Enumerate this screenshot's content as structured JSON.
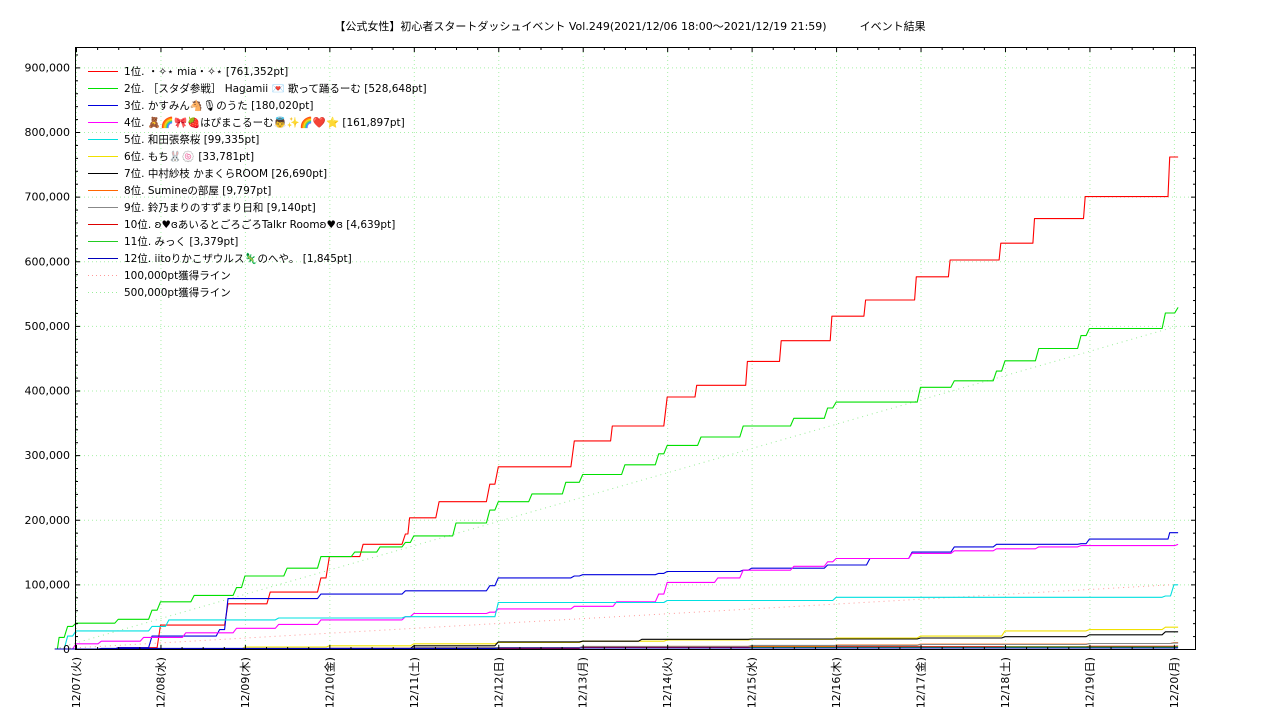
{
  "chart_data": {
    "type": "line",
    "title": "【公式女性】初心者スタートダッシュイベント Vol.249(2021/12/06 18:00～2021/12/19 21:59)　　　イベント結果",
    "xlabel": "",
    "ylabel": "",
    "x_range": [
      0,
      13.25
    ],
    "ylim": [
      0,
      930000
    ],
    "y_ticks": [
      0,
      100000,
      200000,
      300000,
      400000,
      500000,
      600000,
      700000,
      800000,
      900000
    ],
    "y_tick_labels": [
      "0",
      "100,000",
      "200,000",
      "300,000",
      "400,000",
      "500,000",
      "600,000",
      "700,000",
      "800,000",
      "900,000"
    ],
    "x_ticks": [
      0,
      1,
      2,
      3,
      4,
      5,
      6,
      7,
      8,
      9,
      10,
      11,
      12,
      13
    ],
    "x_tick_labels": [
      "12/07(火)",
      "12/08(水)",
      "12/09(木)",
      "12/10(金)",
      "12/11(土)",
      "12/12(日)",
      "12/13(月)",
      "12/14(火)",
      "12/15(水)",
      "12/16(木)",
      "12/17(金)",
      "12/18(土)",
      "12/19(日)",
      "12/20(月)"
    ],
    "grid": true,
    "legend_position": "top-left",
    "series": [
      {
        "name": "1位. ・✧⋆ mia・✧⋆ [761,352pt]",
        "color": "#ff0000",
        "style": "step",
        "points": [
          [
            -0.25,
            0
          ],
          [
            0.5,
            2000
          ],
          [
            1.0,
            37000
          ],
          [
            1.6,
            37000
          ],
          [
            1.8,
            70000
          ],
          [
            2.3,
            88000
          ],
          [
            2.9,
            110000
          ],
          [
            3.0,
            143000
          ],
          [
            3.4,
            162000
          ],
          [
            3.9,
            178000
          ],
          [
            3.95,
            203000
          ],
          [
            4.3,
            228000
          ],
          [
            4.9,
            255000
          ],
          [
            5.0,
            282000
          ],
          [
            5.8,
            282000
          ],
          [
            5.9,
            322000
          ],
          [
            6.3,
            322000
          ],
          [
            6.35,
            345000
          ],
          [
            6.9,
            345000
          ],
          [
            7.0,
            390000
          ],
          [
            7.3,
            390000
          ],
          [
            7.35,
            408000
          ],
          [
            7.9,
            408000
          ],
          [
            7.95,
            445000
          ],
          [
            8.3,
            445000
          ],
          [
            8.35,
            477000
          ],
          [
            8.9,
            477000
          ],
          [
            8.95,
            515000
          ],
          [
            9.3,
            515000
          ],
          [
            9.35,
            540000
          ],
          [
            9.9,
            540000
          ],
          [
            9.95,
            576000
          ],
          [
            10.3,
            576000
          ],
          [
            10.35,
            602000
          ],
          [
            10.9,
            602000
          ],
          [
            10.95,
            628000
          ],
          [
            11.3,
            628000
          ],
          [
            11.35,
            666000
          ],
          [
            11.9,
            666000
          ],
          [
            11.95,
            700000
          ],
          [
            12.9,
            700000
          ],
          [
            12.95,
            761352
          ],
          [
            13.05,
            761352
          ]
        ]
      },
      {
        "name": "2位. ［スタダ参戦］ Hagamii 💌 歌って踊るーむ [528,648pt]",
        "color": "#00e000",
        "style": "step",
        "points": [
          [
            -0.25,
            0
          ],
          [
            -0.2,
            18000
          ],
          [
            -0.1,
            35000
          ],
          [
            0.0,
            40000
          ],
          [
            0.5,
            46000
          ],
          [
            0.9,
            60000
          ],
          [
            1.0,
            73000
          ],
          [
            1.4,
            83000
          ],
          [
            1.9,
            95000
          ],
          [
            2.0,
            113000
          ],
          [
            2.5,
            125000
          ],
          [
            2.9,
            143000
          ],
          [
            3.3,
            150000
          ],
          [
            3.6,
            158000
          ],
          [
            3.9,
            165000
          ],
          [
            4.0,
            175000
          ],
          [
            4.5,
            195000
          ],
          [
            4.9,
            215000
          ],
          [
            5.0,
            228000
          ],
          [
            5.4,
            240000
          ],
          [
            5.8,
            258000
          ],
          [
            6.0,
            270000
          ],
          [
            6.5,
            285000
          ],
          [
            6.9,
            302000
          ],
          [
            7.0,
            315000
          ],
          [
            7.4,
            328000
          ],
          [
            7.9,
            345000
          ],
          [
            8.5,
            357000
          ],
          [
            8.9,
            373000
          ],
          [
            9.0,
            382000
          ],
          [
            9.9,
            382000
          ],
          [
            10.0,
            405000
          ],
          [
            10.4,
            415000
          ],
          [
            10.9,
            430000
          ],
          [
            11.0,
            446000
          ],
          [
            11.4,
            465000
          ],
          [
            11.9,
            485000
          ],
          [
            12.0,
            496000
          ],
          [
            12.6,
            496000
          ],
          [
            12.9,
            520000
          ],
          [
            13.05,
            528648
          ]
        ]
      },
      {
        "name": "3位. かすみん🐴🎙のうた [180,020pt]",
        "color": "#0000dd",
        "style": "step",
        "points": [
          [
            -0.25,
            0
          ],
          [
            0.5,
            2000
          ],
          [
            0.9,
            20000
          ],
          [
            1.7,
            30000
          ],
          [
            1.8,
            78000
          ],
          [
            2.5,
            78000
          ],
          [
            2.9,
            85000
          ],
          [
            3.9,
            90000
          ],
          [
            4.9,
            98000
          ],
          [
            5.0,
            110000
          ],
          [
            5.9,
            113000
          ],
          [
            6.0,
            115000
          ],
          [
            6.9,
            117000
          ],
          [
            7.0,
            120000
          ],
          [
            7.9,
            122000
          ],
          [
            8.0,
            125000
          ],
          [
            8.9,
            130000
          ],
          [
            9.4,
            140000
          ],
          [
            9.9,
            150000
          ],
          [
            10.4,
            158000
          ],
          [
            10.9,
            162000
          ],
          [
            11.9,
            163000
          ],
          [
            12.0,
            170000
          ],
          [
            12.9,
            170000
          ],
          [
            12.95,
            180020
          ],
          [
            13.05,
            180020
          ]
        ]
      },
      {
        "name": "4位. 🧸🌈🎀🍓はぴまこるーむ👼✨🌈❤️⭐ [161,897pt]",
        "color": "#ff00ff",
        "style": "step",
        "points": [
          [
            -0.25,
            0
          ],
          [
            0.0,
            8000
          ],
          [
            0.3,
            12000
          ],
          [
            0.8,
            18000
          ],
          [
            1.3,
            25000
          ],
          [
            1.9,
            32000
          ],
          [
            2.4,
            38000
          ],
          [
            2.9,
            45000
          ],
          [
            3.9,
            50000
          ],
          [
            4.0,
            55000
          ],
          [
            4.9,
            57000
          ],
          [
            5.0,
            62000
          ],
          [
            5.9,
            66000
          ],
          [
            6.4,
            73000
          ],
          [
            6.9,
            85000
          ],
          [
            7.0,
            103000
          ],
          [
            7.6,
            110000
          ],
          [
            7.9,
            122000
          ],
          [
            8.5,
            128000
          ],
          [
            8.9,
            135000
          ],
          [
            9.0,
            140000
          ],
          [
            9.9,
            148000
          ],
          [
            10.4,
            152000
          ],
          [
            10.9,
            155000
          ],
          [
            11.4,
            158000
          ],
          [
            11.9,
            160000
          ],
          [
            13.05,
            161897
          ]
        ]
      },
      {
        "name": "5位. 和田張祭桜 [99,335pt]",
        "color": "#00e0e0",
        "style": "step",
        "points": [
          [
            -0.25,
            0
          ],
          [
            -0.1,
            20000
          ],
          [
            0.0,
            28000
          ],
          [
            0.9,
            35000
          ],
          [
            1.1,
            45000
          ],
          [
            2.4,
            48000
          ],
          [
            3.9,
            50000
          ],
          [
            5.0,
            72000
          ],
          [
            7.0,
            75000
          ],
          [
            9.0,
            80000
          ],
          [
            12.9,
            82000
          ],
          [
            13.0,
            99335
          ],
          [
            13.05,
            99335
          ]
        ]
      },
      {
        "name": "6位. もち🐰🍥 [33,781pt]",
        "color": "#f0e000",
        "style": "step",
        "points": [
          [
            -0.25,
            0
          ],
          [
            2.0,
            3000
          ],
          [
            3.0,
            5000
          ],
          [
            4.0,
            8000
          ],
          [
            5.0,
            10000
          ],
          [
            6.0,
            12000
          ],
          [
            7.0,
            14000
          ],
          [
            8.0,
            15000
          ],
          [
            9.0,
            17000
          ],
          [
            10.0,
            20000
          ],
          [
            11.0,
            28000
          ],
          [
            12.0,
            30000
          ],
          [
            12.9,
            33781
          ],
          [
            13.05,
            33781
          ]
        ]
      },
      {
        "name": "7位. 中村紗枝 かまくらROOM [26,690pt]",
        "color": "#000000",
        "style": "step",
        "points": [
          [
            -0.25,
            0
          ],
          [
            3.0,
            1000
          ],
          [
            4.0,
            5000
          ],
          [
            5.0,
            11000
          ],
          [
            6.0,
            12000
          ],
          [
            6.7,
            15000
          ],
          [
            8.0,
            15500
          ],
          [
            10.0,
            17000
          ],
          [
            11.0,
            19000
          ],
          [
            12.0,
            22000
          ],
          [
            12.9,
            26690
          ],
          [
            13.05,
            26690
          ]
        ]
      },
      {
        "name": "8位. Sumineの部屋 [9,797pt]",
        "color": "#ff6600",
        "style": "step",
        "points": [
          [
            -0.25,
            0
          ],
          [
            5.0,
            2000
          ],
          [
            7.0,
            4000
          ],
          [
            9.0,
            6000
          ],
          [
            10.0,
            7500
          ],
          [
            12.0,
            8500
          ],
          [
            13.0,
            9797
          ],
          [
            13.05,
            9797
          ]
        ]
      },
      {
        "name": "9位. 鈴乃まりのすずまり日和 [9,140pt]",
        "color": "#888888",
        "style": "step",
        "points": [
          [
            -0.25,
            0
          ],
          [
            4.0,
            2000
          ],
          [
            6.0,
            4000
          ],
          [
            8.0,
            5500
          ],
          [
            10.0,
            7000
          ],
          [
            12.0,
            8500
          ],
          [
            13.0,
            9140
          ],
          [
            13.05,
            9140
          ]
        ]
      },
      {
        "name": "10位. ʚ♥ɞあいるとごろごろTalkr Roomʚ♥ɞ [4,639pt]",
        "color": "#dd0000",
        "style": "step",
        "points": [
          [
            -0.25,
            0
          ],
          [
            3.0,
            1000
          ],
          [
            6.0,
            2500
          ],
          [
            9.0,
            3500
          ],
          [
            12.0,
            4200
          ],
          [
            13.05,
            4639
          ]
        ]
      },
      {
        "name": "11位. みっく [3,379pt]",
        "color": "#22cc22",
        "style": "step",
        "points": [
          [
            -0.25,
            0
          ],
          [
            2.0,
            500
          ],
          [
            5.0,
            1500
          ],
          [
            8.0,
            2500
          ],
          [
            11.0,
            3000
          ],
          [
            13.05,
            3379
          ]
        ]
      },
      {
        "name": "12位. iitoりかこザウルス🦎のへや。 [1,845pt]",
        "color": "#0000bb",
        "style": "step",
        "points": [
          [
            -0.25,
            0
          ],
          [
            0.3,
            1000
          ],
          [
            5.0,
            1500
          ],
          [
            13.05,
            1845
          ]
        ]
      },
      {
        "name": "100,000pt獲得ライン",
        "color": "#ff9999",
        "style": "dotted",
        "points": [
          [
            -0.25,
            0
          ],
          [
            13.05,
            100000
          ]
        ]
      },
      {
        "name": "500,000pt獲得ライン",
        "color": "#99ee99",
        "style": "dotted",
        "points": [
          [
            -0.25,
            0
          ],
          [
            13.05,
            500000
          ]
        ]
      }
    ]
  }
}
